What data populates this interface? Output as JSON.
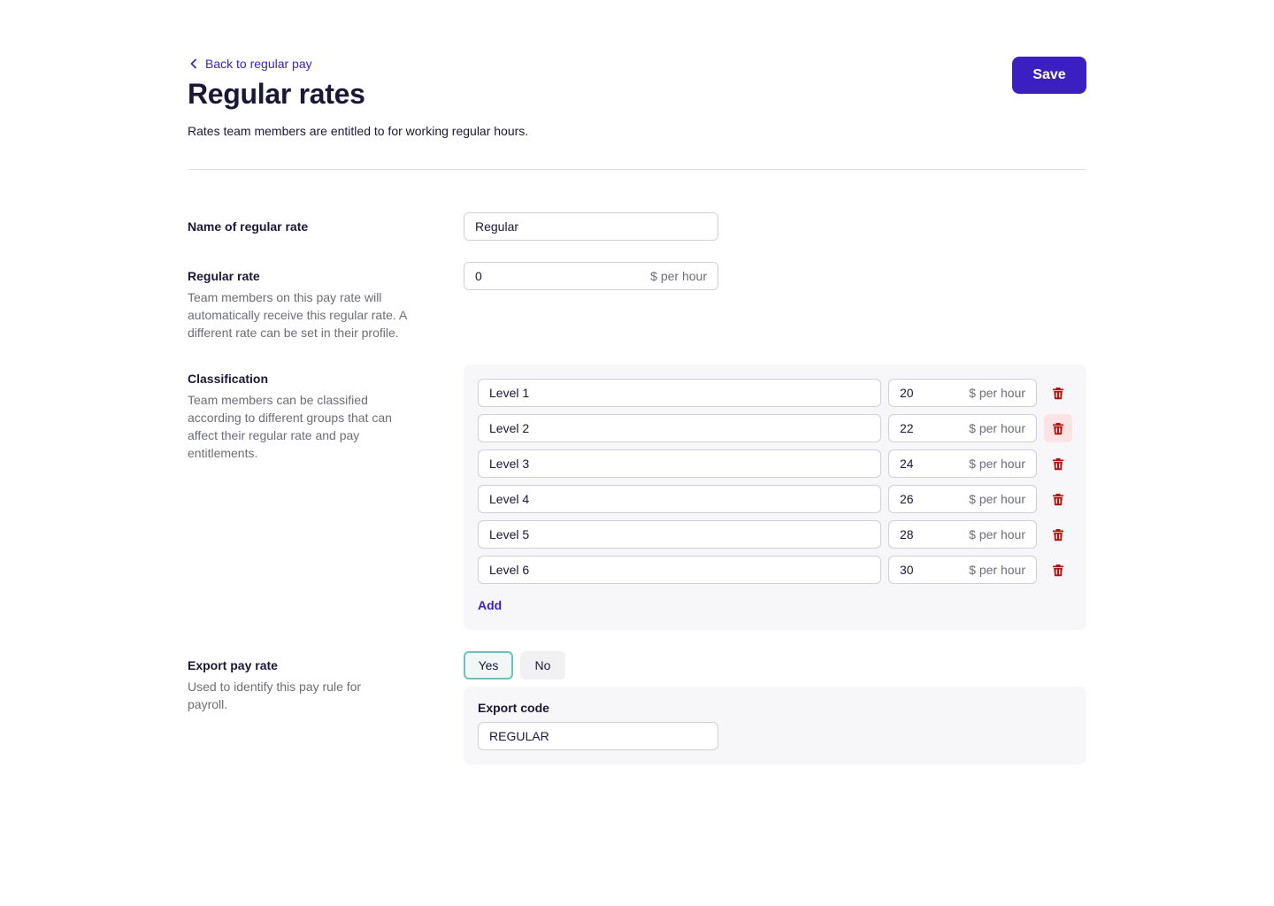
{
  "header": {
    "back_label": "Back to regular pay",
    "title": "Regular rates",
    "subtitle": "Rates team members are entitled to for working regular hours.",
    "save_label": "Save"
  },
  "name_section": {
    "label": "Name of regular rate",
    "value": "Regular"
  },
  "rate_section": {
    "label": "Regular rate",
    "help": "Team members on this pay rate will automatically receive this regular rate. A different rate can be set in their profile.",
    "value": "0",
    "suffix": "$ per hour"
  },
  "classification": {
    "label": "Classification",
    "help": "Team members can be classified according to different groups that can affect their regular rate and pay entitlements.",
    "rows": [
      {
        "name": "Level 1",
        "rate": "20",
        "suffix": "$ per hour"
      },
      {
        "name": "Level 2",
        "rate": "22",
        "suffix": "$ per hour"
      },
      {
        "name": "Level 3",
        "rate": "24",
        "suffix": "$ per hour"
      },
      {
        "name": "Level 4",
        "rate": "26",
        "suffix": "$ per hour"
      },
      {
        "name": "Level 5",
        "rate": "28",
        "suffix": "$ per hour"
      },
      {
        "name": "Level 6",
        "rate": "30",
        "suffix": "$ per hour"
      }
    ],
    "hovered_row": 1,
    "add_label": "Add"
  },
  "export_section": {
    "label": "Export pay rate",
    "help": "Used to identify this pay rule for payroll.",
    "yes_label": "Yes",
    "no_label": "No",
    "selected": "Yes",
    "code_label": "Export code",
    "code_value": "REGULAR"
  },
  "colors": {
    "accent": "#3b1fc1",
    "link": "#3b22c4",
    "delete_icon": "#b3140f",
    "delete_hover_bg": "#fde3e3",
    "selected_border": "#6fbfbf"
  },
  "icons": {
    "back": "chevron-left-icon",
    "delete": "trash-icon"
  }
}
